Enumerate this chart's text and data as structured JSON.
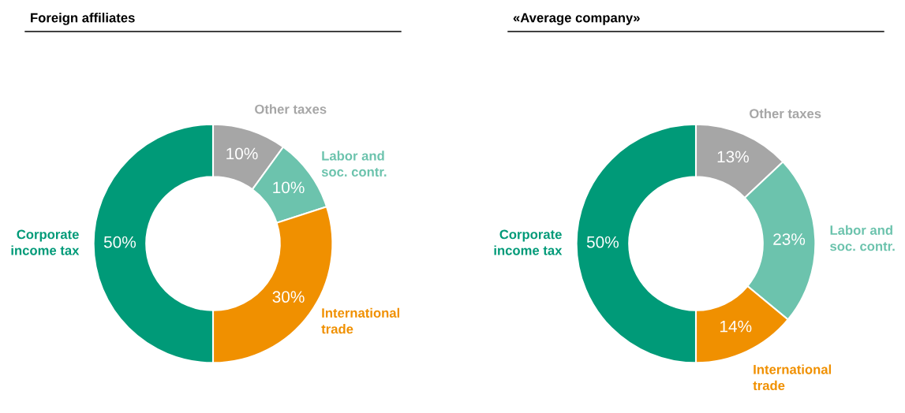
{
  "chart_data": [
    {
      "type": "donut",
      "title": "Foreign affiliates",
      "categories": [
        "Other taxes",
        "Labor and\nsoc. contr.",
        "International\ntrade",
        "Corporate\nincome tax"
      ],
      "values": [
        10,
        10,
        30,
        50
      ],
      "colors": [
        "#a6a6a6",
        "#6cc3ad",
        "#f09000",
        "#009a78"
      ],
      "value_labels": [
        "10%",
        "10%",
        "30%",
        "50%"
      ],
      "legend": false
    },
    {
      "type": "donut",
      "title": "«Average company»",
      "categories": [
        "Other taxes",
        "Labor and\nsoc. contr.",
        "International\ntrade",
        "Corporate\nincome tax"
      ],
      "values": [
        13,
        23,
        14,
        50
      ],
      "colors": [
        "#a6a6a6",
        "#6cc3ad",
        "#f09000",
        "#009a78"
      ],
      "value_labels": [
        "13%",
        "23%",
        "14%",
        "50%"
      ],
      "legend": false
    }
  ]
}
